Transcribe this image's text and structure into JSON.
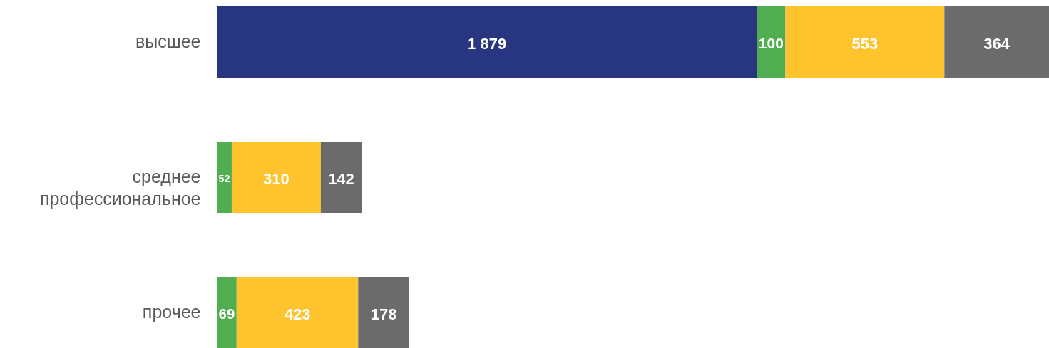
{
  "chart_data": {
    "type": "bar",
    "orientation": "horizontal",
    "stacked": true,
    "categories": [
      "высшее",
      "среднее профессиональное",
      "прочее"
    ],
    "series": [
      {
        "color": "#283681",
        "values": [
          1879,
          null,
          null
        ],
        "value_labels": [
          "1 879",
          null,
          null
        ]
      },
      {
        "color": "#50ae50",
        "values": [
          100,
          52,
          69
        ],
        "value_labels": [
          "100",
          "52",
          "69"
        ]
      },
      {
        "color": "#fec32d",
        "values": [
          553,
          310,
          423
        ],
        "value_labels": [
          "553",
          "310",
          "423"
        ]
      },
      {
        "color": "#6b6b6b",
        "values": [
          364,
          142,
          178
        ],
        "value_labels": [
          "364",
          "142",
          "178"
        ]
      }
    ]
  }
}
